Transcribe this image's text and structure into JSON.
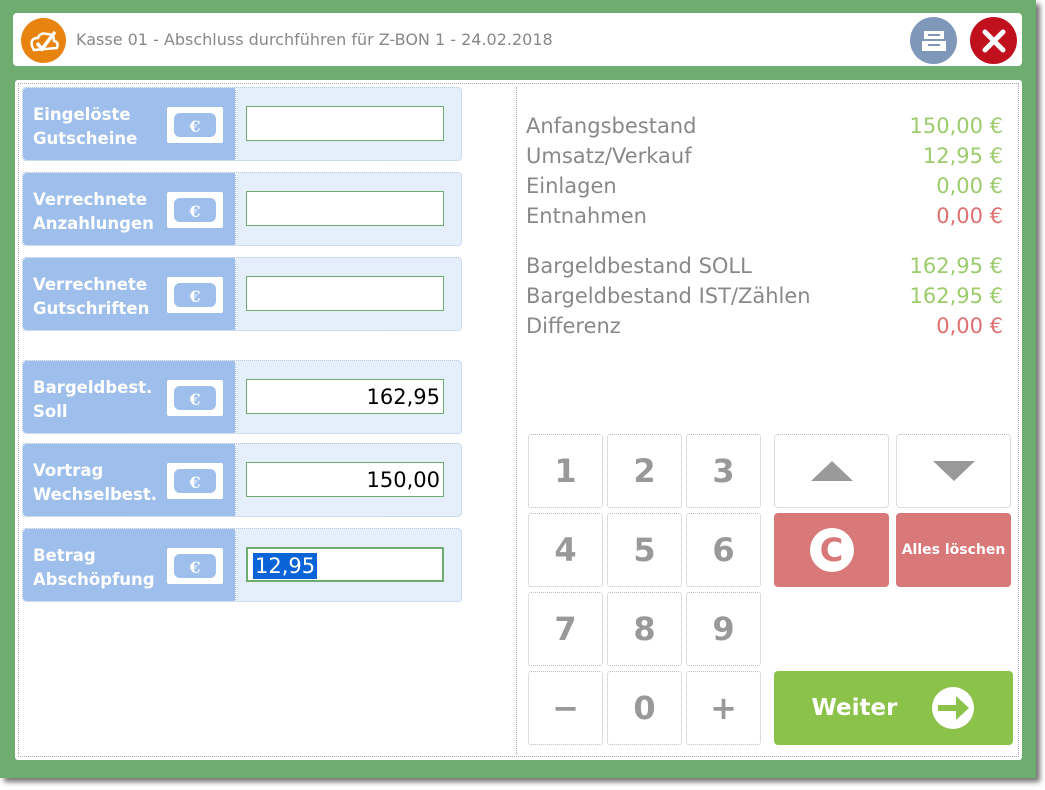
{
  "window": {
    "title": "Kasse 01 - Abschluss durchführen für Z-BON 1 - 24.02.2018",
    "logo_icon": "checkmark-cloud-logo",
    "print_icon": "cash-drawer-icon",
    "close_icon": "close-icon"
  },
  "colors": {
    "frame": "#6fac6f",
    "label_bg": "#9ebfeb",
    "green_value": "#9ccc6c",
    "red_value": "#e07070",
    "clear_button": "#d87878",
    "next_button": "#8bc34a"
  },
  "fields": [
    {
      "label1": "Eingelöste",
      "label2": "Gutscheine",
      "value": ""
    },
    {
      "label1": "Verrechnete",
      "label2": "Anzahlungen",
      "value": ""
    },
    {
      "label1": "Verrechnete",
      "label2": "Gutschriften",
      "value": ""
    },
    {
      "label1": "Bargeldbest.",
      "label2": "Soll",
      "value": "162,95"
    },
    {
      "label1": "Vortrag",
      "label2": "Wechselbest.",
      "value": "150,00"
    },
    {
      "label1": "Betrag",
      "label2": "Abschöpfung",
      "value": "12,95"
    }
  ],
  "summary": [
    {
      "label": "Anfangsbestand",
      "value": "150,00 €",
      "color": "green"
    },
    {
      "label": "Umsatz/Verkauf",
      "value": "12,95 €",
      "color": "green"
    },
    {
      "label": "Einlagen",
      "value": "0,00 €",
      "color": "green"
    },
    {
      "label": "Entnahmen",
      "value": "0,00 €",
      "color": "red"
    },
    {
      "label": "Bargeldbestand SOLL",
      "value": "162,95 €",
      "color": "green"
    },
    {
      "label": "Bargeldbestand IST/Zählen",
      "value": "162,95 €",
      "color": "green"
    },
    {
      "label": "Differenz",
      "value": "0,00 €",
      "color": "red"
    }
  ],
  "keypad": [
    "1",
    "2",
    "3",
    "4",
    "5",
    "6",
    "7",
    "8",
    "9",
    "−",
    "0",
    "+"
  ],
  "buttons": {
    "up_icon": "arrow-up-icon",
    "down_icon": "arrow-down-icon",
    "clear_label": "C",
    "clear_all": "Alles löschen",
    "next": "Weiter",
    "next_icon": "arrow-right-circle-icon"
  }
}
